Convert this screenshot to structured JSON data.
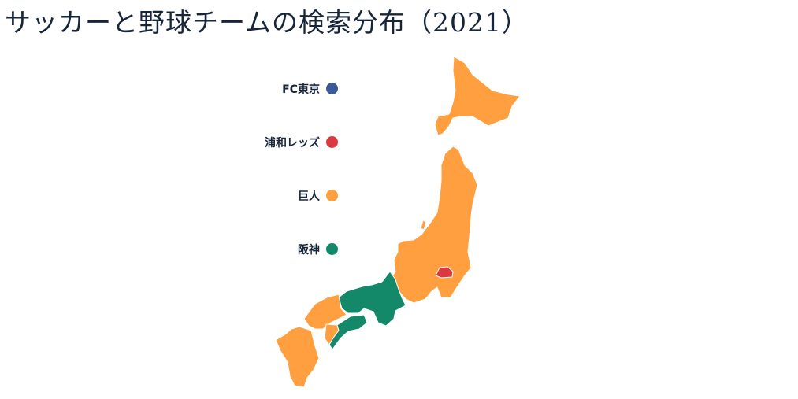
{
  "title": "サッカーと野球チームの検索分布（2021）",
  "legend": [
    {
      "label": "FC東京",
      "color": "#3b5998"
    },
    {
      "label": "浦和レッズ",
      "color": "#d93a40"
    },
    {
      "label": "巨人",
      "color": "#ff9f40"
    },
    {
      "label": "阪神",
      "color": "#13896a"
    }
  ],
  "map": {
    "regions": [
      {
        "region": "北海道",
        "team": "巨人"
      },
      {
        "region": "東北",
        "team": "巨人"
      },
      {
        "region": "関東・中部",
        "team": "巨人"
      },
      {
        "region": "埼玉",
        "team": "浦和レッズ"
      },
      {
        "region": "近畿",
        "team": "阪神"
      },
      {
        "region": "中国",
        "team": "巨人"
      },
      {
        "region": "四国（愛媛）",
        "team": "巨人"
      },
      {
        "region": "四国（香川・徳島・高知）",
        "team": "阪神"
      },
      {
        "region": "九州",
        "team": "巨人"
      }
    ]
  }
}
